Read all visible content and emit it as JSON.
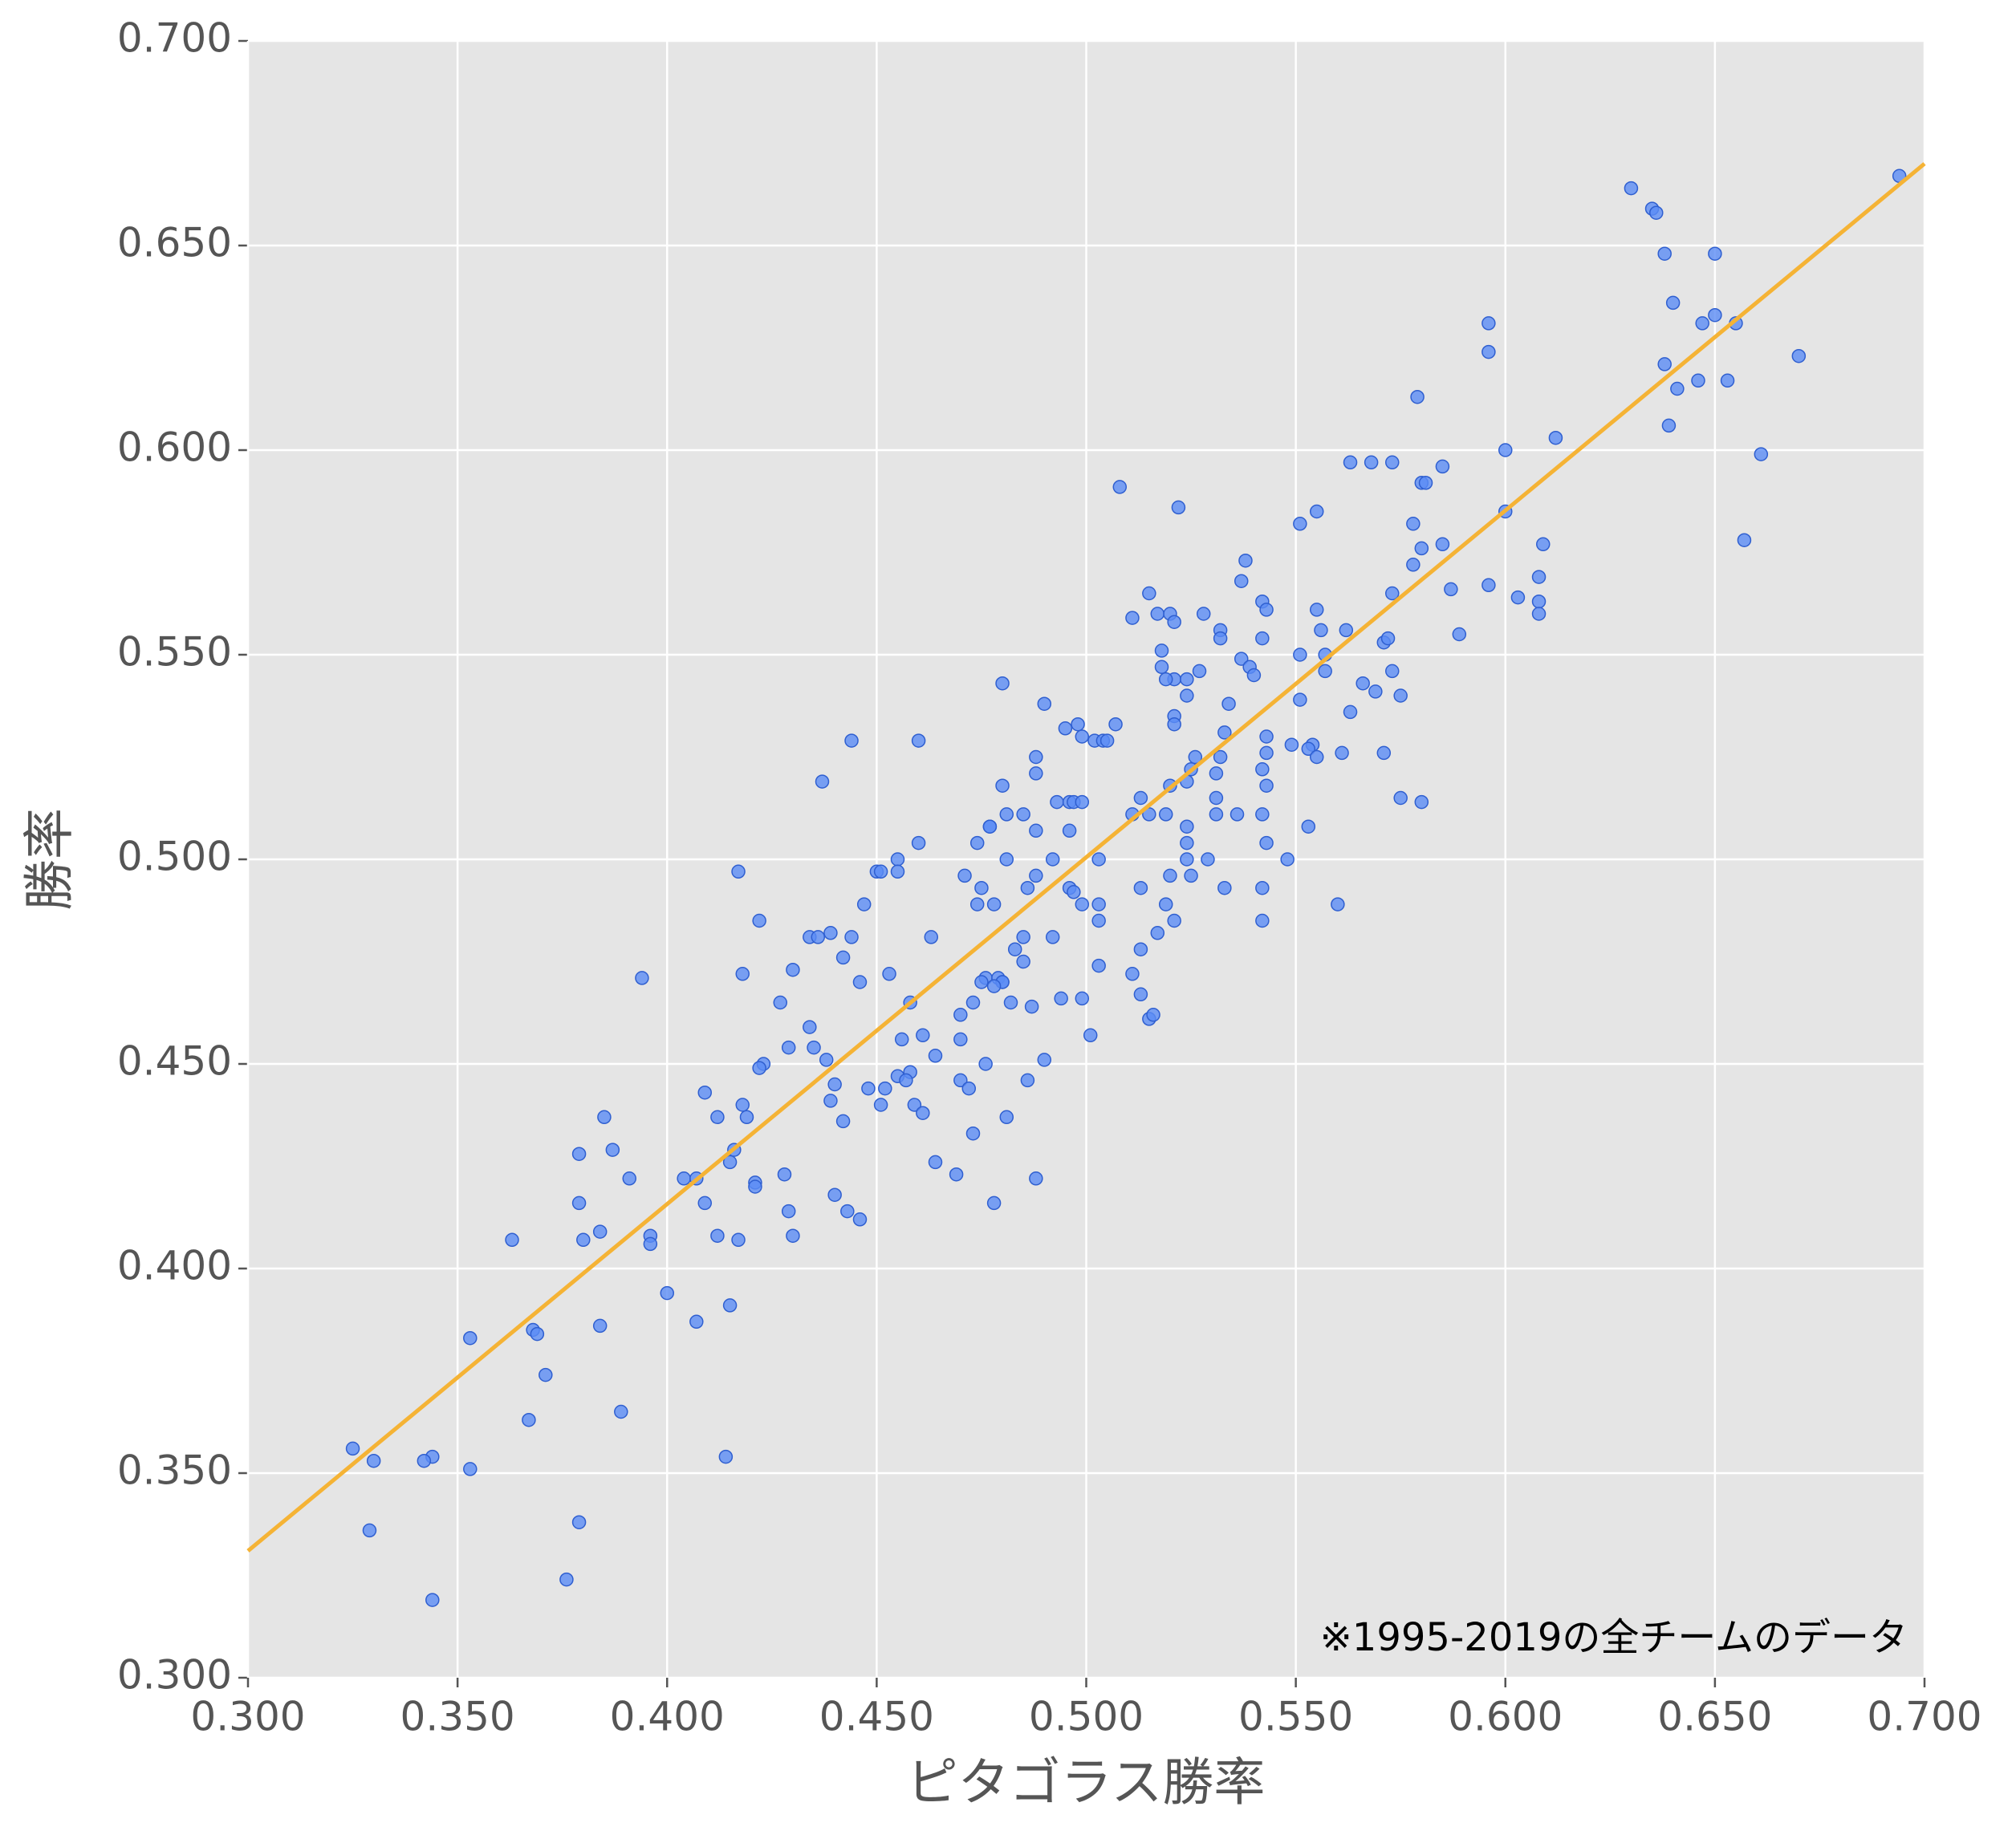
{
  "chart_data": {
    "type": "scatter",
    "xlabel": "ピタゴラス勝率",
    "ylabel": "勝率",
    "annotation": "※1995-2019の全チームのデータ",
    "color": "#5b8cf5",
    "edgecolor": "#2f5fd0",
    "x": [
      0.694,
      0.63,
      0.635,
      0.636,
      0.638,
      0.65,
      0.64,
      0.65,
      0.647,
      0.655,
      0.596,
      0.596,
      0.67,
      0.638,
      0.641,
      0.646,
      0.653,
      0.579,
      0.639,
      0.612,
      0.6,
      0.661,
      0.563,
      0.568,
      0.573,
      0.585,
      0.58,
      0.581,
      0.508,
      0.522,
      0.555,
      0.6,
      0.551,
      0.578,
      0.657,
      0.609,
      0.585,
      0.58,
      0.538,
      0.578,
      0.537,
      0.608,
      0.596,
      0.587,
      0.515,
      0.573,
      0.542,
      0.608,
      0.603,
      0.517,
      0.52,
      0.543,
      0.555,
      0.528,
      0.521,
      0.511,
      0.608,
      0.562,
      0.556,
      0.532,
      0.532,
      0.542,
      0.589,
      0.571,
      0.572,
      0.551,
      0.557,
      0.518,
      0.537,
      0.518,
      0.539,
      0.527,
      0.557,
      0.573,
      0.54,
      0.521,
      0.524,
      0.519,
      0.48,
      0.566,
      0.569,
      0.575,
      0.524,
      0.551,
      0.49,
      0.534,
      0.563,
      0.521,
      0.521,
      0.498,
      0.495,
      0.507,
      0.533,
      0.444,
      0.46,
      0.499,
      0.502,
      0.504,
      0.505,
      0.543,
      0.549,
      0.554,
      0.553,
      0.543,
      0.561,
      0.571,
      0.555,
      0.526,
      0.532,
      0.488,
      0.542,
      0.525,
      0.488,
      0.531,
      0.524,
      0.543,
      0.437,
      0.48,
      0.52,
      0.575,
      0.58,
      0.493,
      0.496,
      0.497,
      0.499,
      0.513,
      0.531,
      0.485,
      0.481,
      0.511,
      0.515,
      0.519,
      0.531,
      0.536,
      0.542,
      0.477,
      0.477,
      0.496,
      0.488,
      0.524,
      0.553,
      0.46,
      0.474,
      0.524,
      0.543,
      0.455,
      0.481,
      0.492,
      0.503,
      0.524,
      0.529,
      0.548,
      0.417,
      0.45,
      0.451,
      0.455,
      0.471,
      0.488,
      0.52,
      0.525,
      0.475,
      0.486,
      0.496,
      0.497,
      0.513,
      0.533,
      0.542,
      0.447,
      0.474,
      0.478,
      0.499,
      0.503,
      0.519,
      0.56,
      0.422,
      0.503,
      0.521,
      0.542,
      0.434,
      0.436,
      0.439,
      0.444,
      0.463,
      0.517,
      0.492,
      0.485,
      0.513,
      0.483,
      0.442,
      0.485,
      0.503,
      0.418,
      0.43,
      0.453,
      0.394,
      0.476,
      0.475,
      0.479,
      0.48,
      0.48,
      0.511,
      0.446,
      0.478,
      0.513,
      0.499,
      0.494,
      0.427,
      0.458,
      0.473,
      0.482,
      0.487,
      0.47,
      0.515,
      0.516,
      0.434,
      0.461,
      0.47,
      0.501,
      0.456,
      0.429,
      0.435,
      0.438,
      0.464,
      0.49,
      0.423,
      0.476,
      0.422,
      0.455,
      0.458,
      0.457,
      0.47,
      0.472,
      0.486,
      0.44,
      0.448,
      0.452,
      0.409,
      0.439,
      0.459,
      0.451,
      0.418,
      0.461,
      0.385,
      0.419,
      0.412,
      0.481,
      0.442,
      0.473,
      0.387,
      0.416,
      0.379,
      0.464,
      0.415,
      0.428,
      0.469,
      0.391,
      0.404,
      0.407,
      0.488,
      0.421,
      0.421,
      0.379,
      0.409,
      0.44,
      0.478,
      0.429,
      0.443,
      0.446,
      0.384,
      0.396,
      0.43,
      0.38,
      0.396,
      0.363,
      0.412,
      0.417,
      0.4,
      0.407,
      0.415,
      0.384,
      0.368,
      0.369,
      0.353,
      0.371,
      0.389,
      0.367,
      0.414,
      0.344,
      0.325,
      0.33,
      0.342,
      0.353,
      0.329,
      0.379,
      0.376,
      0.344
    ],
    "values": [
      0.667,
      0.664,
      0.659,
      0.658,
      0.648,
      0.648,
      0.636,
      0.633,
      0.631,
      0.631,
      0.631,
      0.624,
      0.623,
      0.621,
      0.615,
      0.617,
      0.617,
      0.613,
      0.606,
      0.603,
      0.6,
      0.599,
      0.597,
      0.597,
      0.597,
      0.596,
      0.592,
      0.592,
      0.591,
      0.586,
      0.585,
      0.585,
      0.582,
      0.582,
      0.578,
      0.577,
      0.577,
      0.576,
      0.573,
      0.572,
      0.568,
      0.569,
      0.567,
      0.566,
      0.565,
      0.565,
      0.563,
      0.563,
      0.564,
      0.56,
      0.56,
      0.561,
      0.561,
      0.56,
      0.558,
      0.559,
      0.56,
      0.556,
      0.556,
      0.556,
      0.554,
      0.554,
      0.555,
      0.553,
      0.554,
      0.55,
      0.55,
      0.551,
      0.549,
      0.547,
      0.547,
      0.546,
      0.546,
      0.546,
      0.545,
      0.544,
      0.544,
      0.544,
      0.543,
      0.543,
      0.541,
      0.54,
      0.54,
      0.539,
      0.538,
      0.538,
      0.536,
      0.535,
      0.533,
      0.533,
      0.532,
      0.533,
      0.531,
      0.529,
      0.529,
      0.53,
      0.529,
      0.529,
      0.529,
      0.53,
      0.528,
      0.528,
      0.527,
      0.526,
      0.526,
      0.526,
      0.525,
      0.525,
      0.525,
      0.525,
      0.522,
      0.522,
      0.521,
      0.521,
      0.519,
      0.518,
      0.519,
      0.518,
      0.518,
      0.515,
      0.514,
      0.514,
      0.514,
      0.514,
      0.514,
      0.515,
      0.515,
      0.511,
      0.511,
      0.511,
      0.511,
      0.511,
      0.511,
      0.511,
      0.511,
      0.508,
      0.508,
      0.507,
      0.507,
      0.508,
      0.508,
      0.504,
      0.504,
      0.504,
      0.504,
      0.5,
      0.5,
      0.5,
      0.5,
      0.5,
      0.5,
      0.5,
      0.497,
      0.497,
      0.497,
      0.497,
      0.496,
      0.496,
      0.496,
      0.496,
      0.493,
      0.493,
      0.493,
      0.492,
      0.493,
      0.493,
      0.493,
      0.489,
      0.489,
      0.489,
      0.489,
      0.489,
      0.489,
      0.489,
      0.485,
      0.485,
      0.485,
      0.485,
      0.481,
      0.481,
      0.482,
      0.481,
      0.481,
      0.482,
      0.481,
      0.481,
      0.478,
      0.478,
      0.476,
      0.475,
      0.474,
      0.472,
      0.473,
      0.472,
      0.471,
      0.471,
      0.47,
      0.471,
      0.47,
      0.47,
      0.472,
      0.47,
      0.469,
      0.467,
      0.466,
      0.466,
      0.465,
      0.465,
      0.465,
      0.465,
      0.464,
      0.462,
      0.461,
      0.462,
      0.459,
      0.457,
      0.456,
      0.457,
      0.456,
      0.454,
      0.454,
      0.451,
      0.452,
      0.451,
      0.45,
      0.45,
      0.449,
      0.447,
      0.448,
      0.446,
      0.446,
      0.444,
      0.446,
      0.445,
      0.444,
      0.444,
      0.443,
      0.441,
      0.44,
      0.44,
      0.44,
      0.438,
      0.437,
      0.437,
      0.437,
      0.437,
      0.436,
      0.433,
      0.429,
      0.429,
      0.428,
      0.426,
      0.426,
      0.423,
      0.423,
      0.422,
      0.422,
      0.422,
      0.422,
      0.421,
      0.42,
      0.416,
      0.416,
      0.418,
      0.416,
      0.414,
      0.414,
      0.412,
      0.409,
      0.408,
      0.408,
      0.407,
      0.406,
      0.407,
      0.408,
      0.407,
      0.394,
      0.387,
      0.391,
      0.386,
      0.385,
      0.384,
      0.383,
      0.374,
      0.365,
      0.363,
      0.354,
      0.354,
      0.356,
      0.353,
      0.353,
      0.351,
      0.336,
      0.338,
      0.324,
      0.319
    ],
    "fit": {
      "color": "#f5b335",
      "x": [
        0.3,
        0.7
      ],
      "values": [
        0.331,
        0.67
      ]
    },
    "xlim": [
      0.3,
      0.7
    ],
    "ylim": [
      0.3,
      0.7
    ],
    "xticks": [
      {
        "value": 0.3,
        "label": "0.300"
      },
      {
        "value": 0.35,
        "label": "0.350"
      },
      {
        "value": 0.4,
        "label": "0.400"
      },
      {
        "value": 0.45,
        "label": "0.450"
      },
      {
        "value": 0.5,
        "label": "0.500"
      },
      {
        "value": 0.55,
        "label": "0.550"
      },
      {
        "value": 0.6,
        "label": "0.600"
      },
      {
        "value": 0.65,
        "label": "0.650"
      },
      {
        "value": 0.7,
        "label": "0.700"
      }
    ],
    "yticks": [
      {
        "value": 0.3,
        "label": "0.300"
      },
      {
        "value": 0.35,
        "label": "0.350"
      },
      {
        "value": 0.4,
        "label": "0.400"
      },
      {
        "value": 0.45,
        "label": "0.450"
      },
      {
        "value": 0.5,
        "label": "0.500"
      },
      {
        "value": 0.55,
        "label": "0.550"
      },
      {
        "value": 0.6,
        "label": "0.600"
      },
      {
        "value": 0.65,
        "label": "0.650"
      },
      {
        "value": 0.7,
        "label": "0.700"
      }
    ],
    "grid": true
  }
}
